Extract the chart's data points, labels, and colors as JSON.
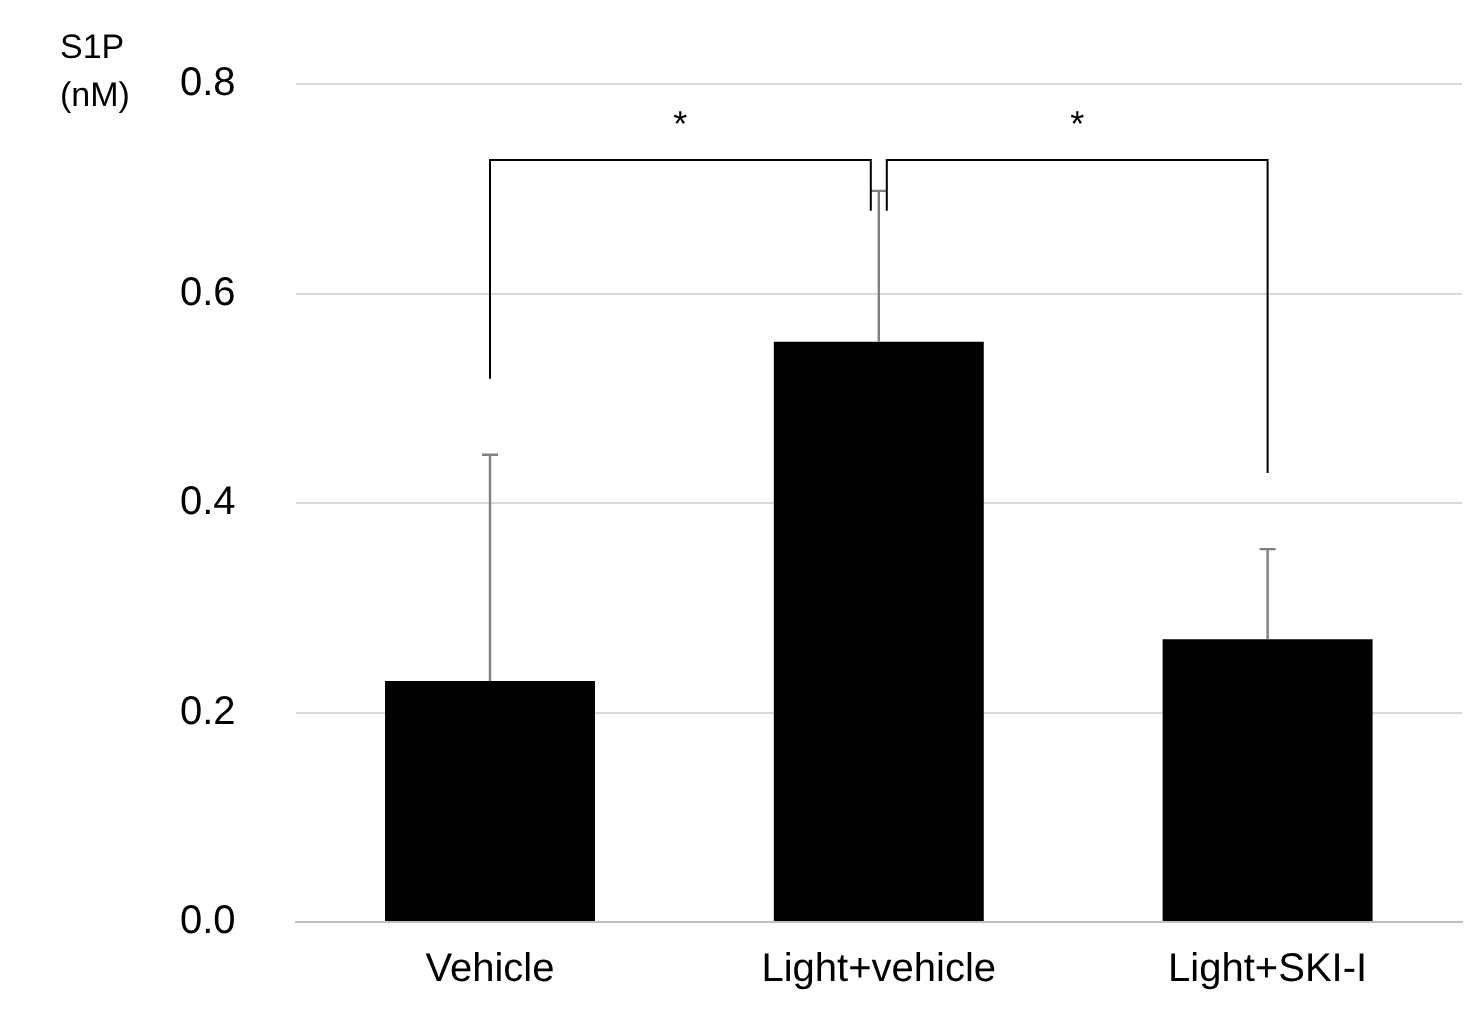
{
  "chart_data": {
    "type": "bar",
    "ylabel": "S1P (nM)",
    "categories": [
      "Vehicle",
      "Light+vehicle",
      "Light+SKI-I"
    ],
    "values": [
      0.23,
      0.554,
      0.27
    ],
    "color": "#000000",
    "errors": [
      [
        0.23,
        0.446
      ],
      [
        0.554,
        0.698
      ],
      [
        0.27,
        0.356
      ]
    ],
    "ylim": [
      0,
      0.8
    ],
    "yticks": [
      {
        "value": 0,
        "label": "0.0"
      },
      {
        "value": 0.2,
        "label": "0.2"
      },
      {
        "value": 0.4,
        "label": "0.4"
      },
      {
        "value": 0.6,
        "label": "0.6"
      },
      {
        "value": 0.8,
        "label": "0.8"
      }
    ],
    "grid": "y",
    "legend": false,
    "annotations": [
      "*",
      "*"
    ]
  }
}
